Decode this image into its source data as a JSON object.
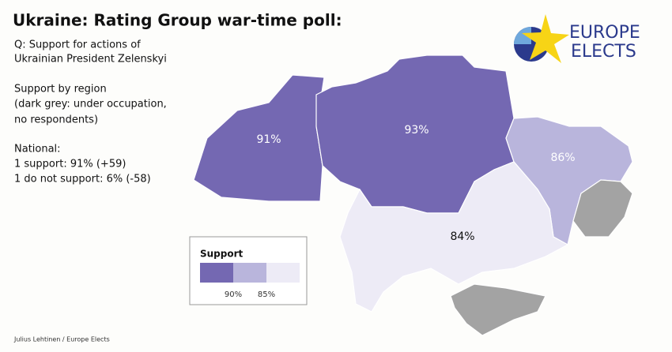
{
  "title": "Ukraine: Rating Group war-time poll:",
  "question": [
    "Q: Support for actions of",
    "Ukrainian President Zelenskyi"
  ],
  "subtitle": [
    "Support by region",
    "(dark grey: under occupation,",
    "no respondents)"
  ],
  "national": [
    "National:",
    "1 support: 91% (+59)",
    "1 do not support: 6% (-58)"
  ],
  "logo": [
    "EUROPE",
    "ELECTS"
  ],
  "regions": [
    {
      "value": 91,
      "label": "91%",
      "color": "#7468b2"
    },
    {
      "value": 93,
      "label": "93%",
      "color": "#7468b2"
    },
    {
      "value": 86,
      "label": "86%",
      "color": "#b9b5dc"
    },
    {
      "value": 84,
      "label": "84%",
      "color": "#edebf6"
    }
  ],
  "occupied_color": "#a3a3a3",
  "legend": {
    "title": "Support",
    "colors": [
      "#7468b2",
      "#b9b5dc",
      "#edebf6"
    ],
    "ticks": [
      {
        "value": 90,
        "label": "90%"
      },
      {
        "value": 85,
        "label": "85%"
      }
    ]
  },
  "credit": "Julius Lehtinen / Europe Elects"
}
